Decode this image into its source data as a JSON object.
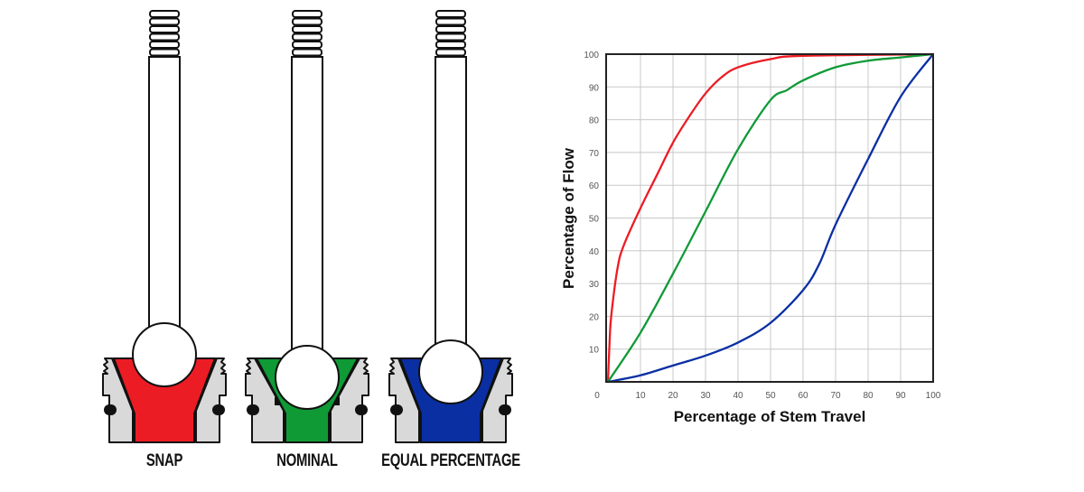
{
  "valves": [
    {
      "label": "SNAP",
      "color": "#ec1c24"
    },
    {
      "label": "NOMINAL",
      "color": "#0f9a36"
    },
    {
      "label": "EQUAL PERCENTAGE",
      "color": "#0a2fa3"
    }
  ],
  "housing_color": "#d9d9d9",
  "chart_data": {
    "type": "line",
    "xlabel": "Percentage of Stem Travel",
    "ylabel": "Percentage of Flow",
    "xlim": [
      0,
      100
    ],
    "ylim": [
      0,
      100
    ],
    "xticks": [
      0,
      10,
      20,
      30,
      40,
      50,
      60,
      70,
      80,
      90,
      100
    ],
    "yticks": [
      10,
      20,
      30,
      40,
      50,
      60,
      70,
      80,
      90,
      100
    ],
    "grid": true,
    "series": [
      {
        "color": "#ec1c24",
        "x": [
          0,
          0.5,
          1,
          3,
          5,
          10,
          15,
          20,
          25,
          30,
          35,
          40,
          50,
          60,
          100
        ],
        "y": [
          0,
          12,
          20,
          35,
          42,
          53,
          63,
          73,
          81,
          88,
          93,
          96,
          98.5,
          99.5,
          100
        ]
      },
      {
        "color": "#0f9a36",
        "x": [
          0,
          10,
          20,
          30,
          40,
          50,
          55,
          60,
          70,
          80,
          90,
          100
        ],
        "y": [
          0,
          15,
          33,
          52,
          71,
          86,
          89,
          92,
          96,
          98,
          99,
          100
        ]
      },
      {
        "color": "#0a2fa3",
        "x": [
          0,
          10,
          20,
          30,
          40,
          50,
          60,
          65,
          70,
          80,
          90,
          100
        ],
        "y": [
          0,
          2,
          5,
          8,
          12,
          18,
          28,
          36,
          48,
          68,
          87,
          100
        ]
      }
    ]
  }
}
